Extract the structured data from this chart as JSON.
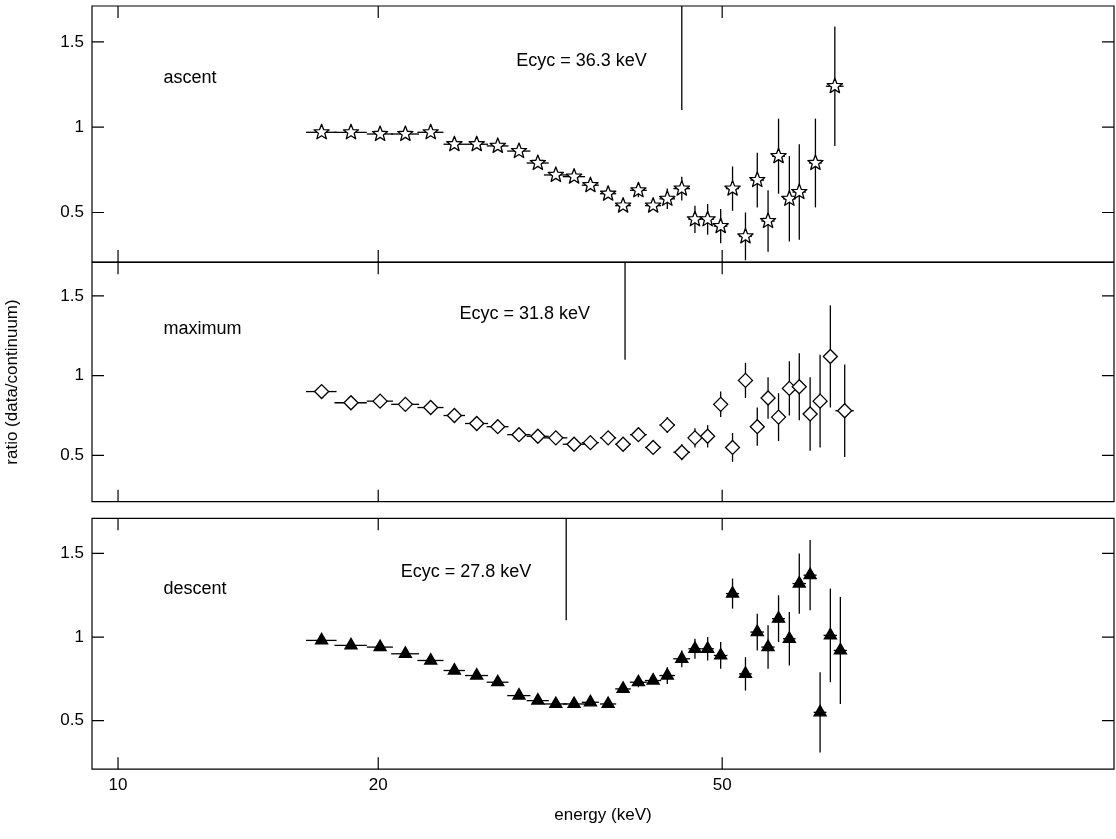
{
  "chart_data": [
    {
      "type": "scatter",
      "xlim": [
        9.33,
        142
      ],
      "xticks": [
        10,
        20,
        50
      ],
      "ylim": [
        0.21,
        1.71
      ],
      "yticks": [
        0.5,
        1,
        1.5
      ],
      "log": "x",
      "tick_labels": "y",
      "legend": false,
      "annotations": [
        "ascent",
        "Ecyc = 36.3 keV"
      ],
      "series": [
        {
          "marker": "star",
          "color": "#000000",
          "x": [
            17.2,
            18.6,
            20.1,
            21.5,
            23.0,
            24.5,
            26.0,
            27.5,
            29.1,
            30.6,
            32.1,
            33.7,
            35.2,
            36.9,
            38.4,
            40.0,
            41.6,
            43.2,
            44.9,
            46.5,
            48.1,
            49.8,
            51.4,
            53.2,
            54.9,
            56.5,
            58.1,
            59.8,
            61.4,
            64.1,
            67.5
          ],
          "values": [
            0.97,
            0.97,
            0.96,
            0.96,
            0.97,
            0.9,
            0.9,
            0.89,
            0.86,
            0.79,
            0.72,
            0.71,
            0.66,
            0.61,
            0.54,
            0.63,
            0.54,
            0.58,
            0.64,
            0.46,
            0.46,
            0.42,
            0.64,
            0.36,
            0.69,
            0.45,
            0.83,
            0.58,
            0.62,
            0.79,
            1.24
          ],
          "errors": [
            null,
            null,
            null,
            null,
            null,
            null,
            null,
            null,
            null,
            null,
            null,
            null,
            null,
            null,
            null,
            0.04,
            null,
            0.06,
            0.07,
            0.08,
            0.09,
            0.1,
            0.13,
            0.14,
            0.16,
            0.18,
            0.22,
            0.25,
            0.28,
            0.26,
            0.35
          ],
          "xerrors": [
            0.7,
            0.8,
            0.7,
            0.8,
            0.8,
            0.7,
            0.8,
            0.8,
            0.9,
            0.9,
            1.0,
            1.0,
            0.8,
            0.8,
            0.8,
            0.9,
            0.9,
            0.9,
            1.0,
            0.8,
            0.8,
            0.9,
            0.9,
            0.9,
            1.0,
            1.0,
            1.0,
            1.0,
            1.1,
            1.1,
            1.6
          ]
        },
        {
          "type": "line",
          "marker": "none",
          "color": "#000000",
          "x": [
            44.9,
            44.9
          ],
          "values": [
            1.1,
            1.71
          ]
        }
      ]
    },
    {
      "type": "scatter",
      "xlim": [
        9.33,
        142
      ],
      "xticks": [
        10,
        20,
        50
      ],
      "ylim": [
        0.21,
        1.71
      ],
      "yticks": [
        0.5,
        1,
        1.5
      ],
      "log": "x",
      "tick_labels": "y",
      "legend": false,
      "ylabel": "ratio (data/continuum)",
      "annotations": [
        "maximum",
        "Ecyc = 31.8 keV"
      ],
      "series": [
        {
          "marker": "diamond",
          "color": "#000000",
          "x": [
            17.2,
            18.6,
            20.1,
            21.5,
            23.0,
            24.5,
            26.0,
            27.5,
            29.1,
            30.6,
            32.1,
            33.7,
            35.2,
            36.9,
            38.4,
            40.0,
            41.6,
            43.2,
            44.9,
            46.5,
            48.1,
            49.8,
            51.4,
            53.2,
            54.9,
            56.5,
            58.1,
            59.8,
            61.4,
            63.2,
            64.9,
            66.7,
            69.3
          ],
          "values": [
            0.9,
            0.83,
            0.84,
            0.82,
            0.8,
            0.75,
            0.7,
            0.68,
            0.63,
            0.62,
            0.61,
            0.57,
            0.58,
            0.61,
            0.57,
            0.63,
            0.55,
            0.69,
            0.52,
            0.61,
            0.62,
            0.82,
            0.55,
            0.97,
            0.68,
            0.86,
            0.74,
            0.92,
            0.93,
            0.76,
            0.84,
            1.12,
            0.78
          ],
          "errors": [
            null,
            null,
            null,
            null,
            null,
            null,
            null,
            null,
            null,
            null,
            null,
            null,
            null,
            null,
            null,
            0.04,
            null,
            0.05,
            0.05,
            0.06,
            0.07,
            0.08,
            0.09,
            0.11,
            0.12,
            0.13,
            0.15,
            0.17,
            0.21,
            0.23,
            0.29,
            0.32,
            0.29
          ],
          "xerrors": [
            0.7,
            0.8,
            0.7,
            0.8,
            0.8,
            0.7,
            0.8,
            0.8,
            0.9,
            0.9,
            1.0,
            1.0,
            0.8,
            0.8,
            0.8,
            0.9,
            0.9,
            0.9,
            1.0,
            0.8,
            0.8,
            0.9,
            0.9,
            0.9,
            1.0,
            1.0,
            1.0,
            1.0,
            1.1,
            1.1,
            1.1,
            1.2,
            1.7
          ]
        },
        {
          "type": "line",
          "marker": "none",
          "color": "#000000",
          "x": [
            38.6,
            38.6
          ],
          "values": [
            1.1,
            1.71
          ]
        }
      ]
    },
    {
      "type": "scatter",
      "xlim": [
        9.33,
        142
      ],
      "xticks": [
        10,
        20,
        50
      ],
      "ylim": [
        0.21,
        1.71
      ],
      "yticks": [
        0.5,
        1,
        1.5
      ],
      "log": "x",
      "legend": false,
      "xlabel": "energy (keV)",
      "annotations": [
        "descent",
        "Ecyc = 27.8 keV"
      ],
      "series": [
        {
          "marker": "triangle",
          "color": "#000000",
          "x": [
            17.2,
            18.6,
            20.1,
            21.5,
            23.0,
            24.5,
            26.0,
            27.5,
            29.1,
            30.6,
            32.1,
            33.7,
            35.2,
            36.9,
            38.4,
            40.0,
            41.6,
            43.2,
            44.9,
            46.5,
            48.1,
            49.8,
            51.4,
            53.2,
            54.9,
            56.5,
            58.1,
            59.8,
            61.4,
            63.2,
            64.9,
            66.7,
            68.5
          ],
          "values": [
            0.98,
            0.95,
            0.94,
            0.9,
            0.86,
            0.8,
            0.77,
            0.73,
            0.65,
            0.62,
            0.6,
            0.6,
            0.61,
            0.6,
            0.69,
            0.73,
            0.74,
            0.77,
            0.87,
            0.93,
            0.93,
            0.89,
            1.26,
            0.78,
            1.03,
            0.94,
            1.11,
            0.99,
            1.32,
            1.37,
            0.55,
            1.01,
            0.92
          ],
          "errors": [
            null,
            null,
            null,
            null,
            null,
            null,
            null,
            null,
            null,
            null,
            null,
            null,
            null,
            null,
            null,
            0.03,
            null,
            0.05,
            0.05,
            0.06,
            0.07,
            0.08,
            0.09,
            0.1,
            0.11,
            0.13,
            0.14,
            0.16,
            0.18,
            0.21,
            0.24,
            0.28,
            0.32
          ],
          "xerrors": [
            0.7,
            0.8,
            0.7,
            0.8,
            0.8,
            0.7,
            0.8,
            0.8,
            0.9,
            0.9,
            1.0,
            1.0,
            0.8,
            0.8,
            0.8,
            0.9,
            0.9,
            0.9,
            1.0,
            0.8,
            0.8,
            0.9,
            0.9,
            0.9,
            1.0,
            1.0,
            1.0,
            1.0,
            1.1,
            1.1,
            1.1,
            1.2,
            1.2
          ]
        },
        {
          "type": "line",
          "marker": "none",
          "color": "#000000",
          "x": [
            33.0,
            33.0
          ],
          "values": [
            1.1,
            1.71
          ]
        }
      ]
    }
  ]
}
